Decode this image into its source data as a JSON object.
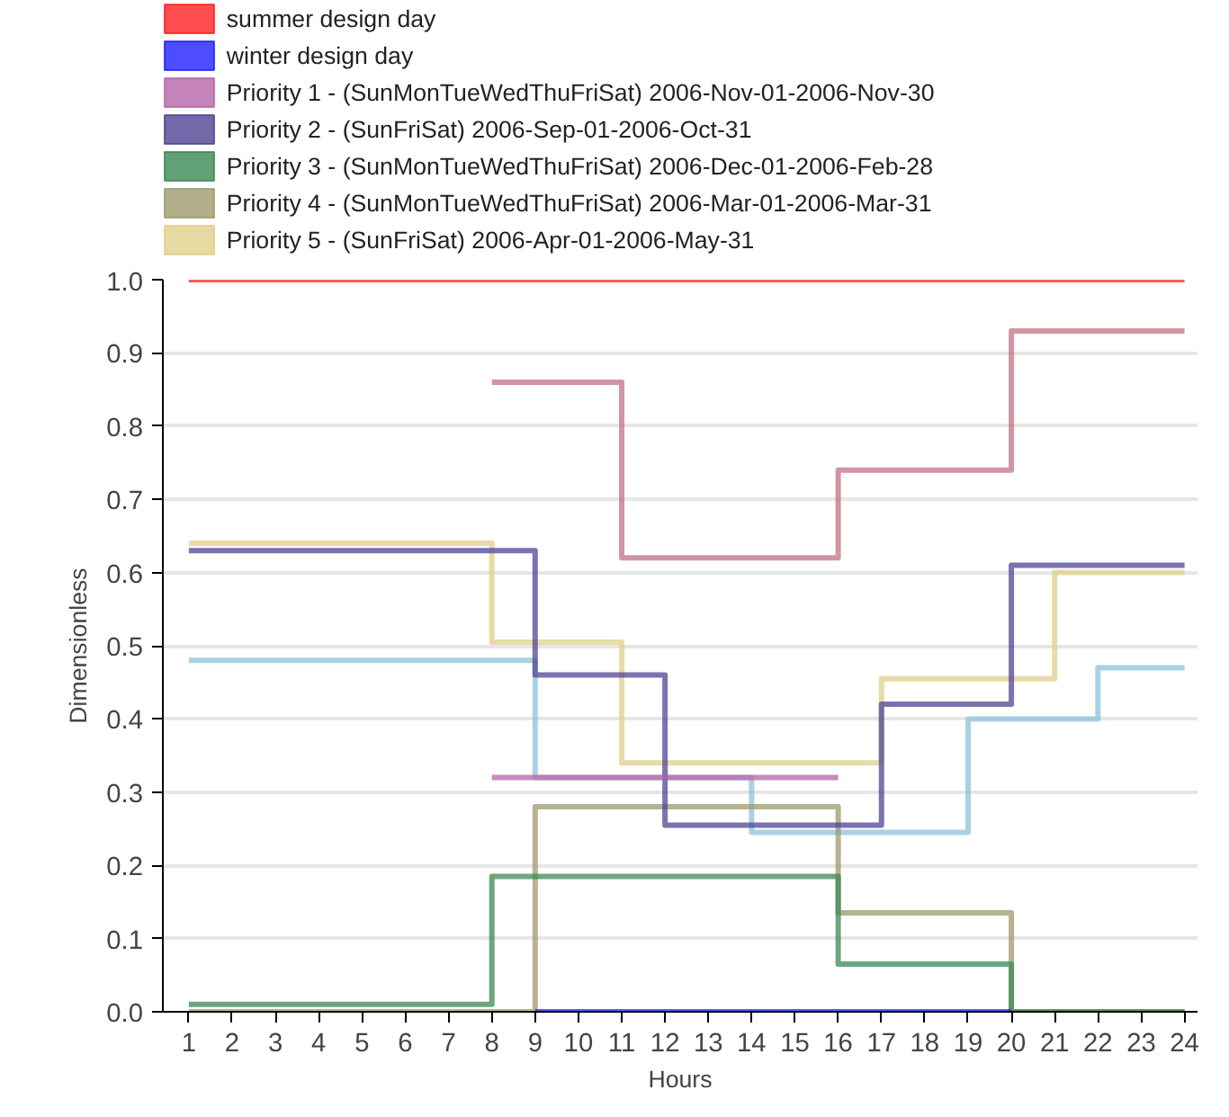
{
  "chart_data": {
    "type": "step",
    "xlabel": "Hours",
    "ylabel": "Dimensionless",
    "x": [
      1,
      2,
      3,
      4,
      5,
      6,
      7,
      8,
      9,
      10,
      11,
      12,
      13,
      14,
      15,
      16,
      17,
      18,
      19,
      20,
      21,
      22,
      23,
      24
    ],
    "xlim": [
      0.4,
      24.3
    ],
    "xticks": [
      1,
      2,
      3,
      4,
      5,
      6,
      7,
      8,
      9,
      10,
      11,
      12,
      13,
      14,
      15,
      16,
      17,
      18,
      19,
      20,
      21,
      22,
      23,
      24
    ],
    "ylim": [
      0,
      1
    ],
    "yticks": [
      {
        "value": 0,
        "label": "0.0"
      },
      0.1,
      0.2,
      0.3,
      0.4,
      0.5,
      0.6,
      0.7,
      0.8,
      0.9,
      {
        "value": 1,
        "label": "1.0"
      }
    ],
    "grid": "y",
    "legend": "top",
    "series": [
      {
        "name": "summer design day",
        "color": "#ff2020",
        "values": [
          1,
          1,
          1,
          1,
          1,
          1,
          1,
          1,
          1,
          1,
          1,
          1,
          1,
          1,
          1,
          1,
          1,
          1,
          1,
          1,
          1,
          1,
          1,
          1
        ]
      },
      {
        "name": "winter design day",
        "color": "#2020ff",
        "values": [
          null,
          null,
          null,
          null,
          null,
          null,
          null,
          null,
          0,
          0,
          0,
          0,
          0,
          0,
          0,
          0,
          0,
          0,
          0,
          0,
          null,
          null,
          null,
          null
        ]
      },
      {
        "name": "Priority 1 - (SunMonTueWedThuFriSat) 2006-Nov-01-2006-Nov-30",
        "color": "#b565a7",
        "values": [
          null,
          null,
          null,
          null,
          null,
          null,
          null,
          0.32,
          0.32,
          0.32,
          0.32,
          0.32,
          0.32,
          0.32,
          0.32,
          0.32,
          null,
          null,
          null,
          null,
          null,
          null,
          null,
          null
        ]
      },
      {
        "name": "Priority 2 - (SunFriSat) 2006-Sep-01-2006-Oct-31",
        "color": "#4f4494",
        "values": [
          0.63,
          0.63,
          0.63,
          0.63,
          0.63,
          0.63,
          0.63,
          0.63,
          0.46,
          0.46,
          0.46,
          0.255,
          0.255,
          0.255,
          0.255,
          0.255,
          0.42,
          0.42,
          0.42,
          0.61,
          0.61,
          0.61,
          0.61,
          0.61
        ]
      },
      {
        "name": "Priority 3 - (SunMonTueWedThuFriSat) 2006-Dec-01-2006-Feb-28",
        "color": "#3a8a52",
        "values": [
          0.01,
          0.01,
          0.01,
          0.01,
          0.01,
          0.01,
          0.01,
          0.185,
          0.185,
          0.185,
          0.185,
          0.185,
          0.185,
          0.185,
          0.185,
          0.065,
          0.065,
          0.065,
          0.065,
          0,
          0,
          0,
          0,
          0
        ]
      },
      {
        "name": "Priority 4 - (SunMonTueWedThuFriSat) 2006-Mar-01-2006-Mar-31",
        "color": "#9e9a6c",
        "values": [
          0,
          0,
          0,
          0,
          0,
          0,
          0,
          0,
          0.28,
          0.28,
          0.28,
          0.28,
          0.28,
          0.28,
          0.28,
          0.135,
          0.135,
          0.135,
          0.135,
          0,
          0,
          0,
          0,
          0
        ]
      },
      {
        "name": "Priority 5 - (SunFriSat) 2006-Apr-01-2006-May-31",
        "color": "#e0cf8a",
        "values": [
          0.64,
          0.64,
          0.64,
          0.64,
          0.64,
          0.64,
          0.64,
          0.505,
          0.505,
          0.505,
          0.34,
          0.34,
          0.34,
          0.34,
          0.34,
          0.34,
          0.455,
          0.455,
          0.455,
          0.455,
          0.6,
          0.6,
          0.6,
          0.6
        ]
      },
      {
        "color": "#c27282",
        "values": [
          null,
          null,
          null,
          null,
          null,
          null,
          null,
          0.86,
          0.86,
          0.86,
          0.62,
          0.62,
          0.62,
          0.62,
          0.62,
          0.74,
          0.74,
          0.74,
          0.74,
          0.93,
          0.93,
          0.93,
          0.93,
          0.93
        ]
      },
      {
        "color": "#8ec1da",
        "values": [
          0.48,
          0.48,
          0.48,
          0.48,
          0.48,
          0.48,
          0.48,
          0.48,
          0.32,
          0.32,
          0.32,
          0.32,
          0.32,
          0.245,
          0.245,
          0.245,
          0.245,
          0.245,
          0.4,
          0.4,
          0.4,
          0.47,
          0.47,
          0.47
        ]
      }
    ]
  }
}
